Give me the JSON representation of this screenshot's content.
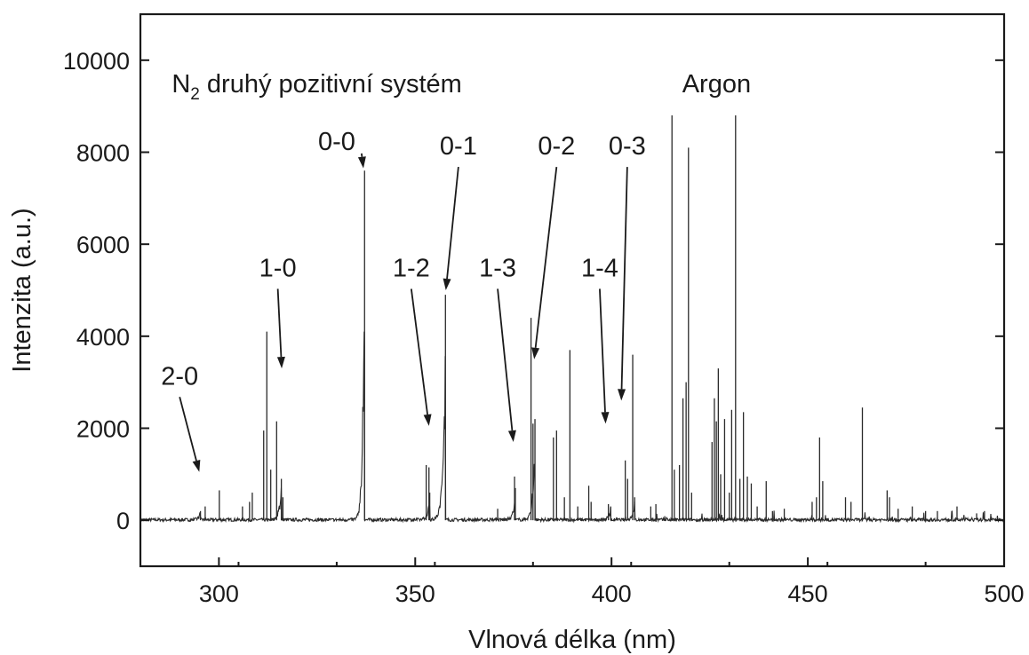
{
  "chart_data": {
    "type": "line",
    "title": "",
    "xlabel": "Vlnová délka (nm)",
    "ylabel": "Intenzita (a.u.)",
    "xlim": [
      280,
      500
    ],
    "ylim": [
      -1000,
      11000
    ],
    "xticks": [
      300,
      350,
      400,
      450,
      500
    ],
    "yticks": [
      0,
      2000,
      4000,
      6000,
      8000,
      10000
    ],
    "grid": false,
    "legend": "none",
    "annotations_text": [
      {
        "prefix": "N",
        "sub": "2",
        "suffix": " druhý pozitivní systém",
        "x": 288,
        "y": 9300
      },
      {
        "text": "Argon",
        "x": 418,
        "y": 9300
      }
    ],
    "band_labels": [
      {
        "text": "2-0",
        "label_x": 290,
        "label_y": 2950,
        "tip_x": 295,
        "tip_y": 1050
      },
      {
        "text": "1-0",
        "label_x": 315,
        "label_y": 5300,
        "tip_x": 316,
        "tip_y": 3300
      },
      {
        "text": "0-0",
        "label_x": 330,
        "label_y": 8050,
        "tip_x": 336.8,
        "tip_y": 7650
      },
      {
        "text": "1-2",
        "label_x": 349,
        "label_y": 5300,
        "tip_x": 353.5,
        "tip_y": 2050
      },
      {
        "text": "0-1",
        "label_x": 361,
        "label_y": 7950,
        "tip_x": 357.8,
        "tip_y": 5000
      },
      {
        "text": "1-3",
        "label_x": 371,
        "label_y": 5300,
        "tip_x": 375,
        "tip_y": 1700
      },
      {
        "text": "0-2",
        "label_x": 386,
        "label_y": 7950,
        "tip_x": 380.3,
        "tip_y": 3500
      },
      {
        "text": "1-4",
        "label_x": 397,
        "label_y": 5300,
        "tip_x": 398.5,
        "tip_y": 2100
      },
      {
        "text": "0-3",
        "label_x": 404,
        "label_y": 7950,
        "tip_x": 402.5,
        "tip_y": 2600
      }
    ],
    "bands": [
      {
        "head": 295.3,
        "peak": 200,
        "width": 2,
        "decay": 1.5
      },
      {
        "head": 315.9,
        "peak": 900,
        "width": 4,
        "decay": 1.6
      },
      {
        "head": 337.1,
        "peak": 7600,
        "width": 9,
        "decay": 2.2
      },
      {
        "head": 353.7,
        "peak": 600,
        "width": 5,
        "decay": 1.8
      },
      {
        "head": 357.7,
        "peak": 4900,
        "width": 6,
        "decay": 1.6
      },
      {
        "head": 375.5,
        "peak": 700,
        "width": 5,
        "decay": 1.8
      },
      {
        "head": 380.5,
        "peak": 2200,
        "width": 6,
        "decay": 1.8
      },
      {
        "head": 399.8,
        "peak": 300,
        "width": 4,
        "decay": 1.8
      },
      {
        "head": 405.9,
        "peak": 500,
        "width": 6,
        "decay": 1.8
      }
    ],
    "lines": [
      {
        "x": 296.5,
        "y": 300
      },
      {
        "x": 300.1,
        "y": 650
      },
      {
        "x": 306.0,
        "y": 300
      },
      {
        "x": 307.8,
        "y": 400
      },
      {
        "x": 308.5,
        "y": 600
      },
      {
        "x": 311.4,
        "y": 1950
      },
      {
        "x": 312.2,
        "y": 4100
      },
      {
        "x": 313.2,
        "y": 1100
      },
      {
        "x": 314.7,
        "y": 2150
      },
      {
        "x": 316.3,
        "y": 500
      },
      {
        "x": 352.8,
        "y": 1200
      },
      {
        "x": 353.5,
        "y": 1150
      },
      {
        "x": 371.0,
        "y": 250
      },
      {
        "x": 375.3,
        "y": 950
      },
      {
        "x": 379.5,
        "y": 4400
      },
      {
        "x": 380.0,
        "y": 2100
      },
      {
        "x": 385.2,
        "y": 1800
      },
      {
        "x": 386.0,
        "y": 1950
      },
      {
        "x": 388.0,
        "y": 500
      },
      {
        "x": 389.4,
        "y": 3700
      },
      {
        "x": 391.4,
        "y": 300
      },
      {
        "x": 394.2,
        "y": 750
      },
      {
        "x": 394.8,
        "y": 400
      },
      {
        "x": 399.2,
        "y": 350
      },
      {
        "x": 403.5,
        "y": 1300
      },
      {
        "x": 404.1,
        "y": 900
      },
      {
        "x": 405.4,
        "y": 3600
      },
      {
        "x": 410.0,
        "y": 300
      },
      {
        "x": 411.3,
        "y": 350
      },
      {
        "x": 415.4,
        "y": 8800
      },
      {
        "x": 416.0,
        "y": 1100
      },
      {
        "x": 417.3,
        "y": 1200
      },
      {
        "x": 418.2,
        "y": 2650
      },
      {
        "x": 419.0,
        "y": 3000
      },
      {
        "x": 419.6,
        "y": 8100
      },
      {
        "x": 420.4,
        "y": 600
      },
      {
        "x": 425.6,
        "y": 1700
      },
      {
        "x": 426.2,
        "y": 2650
      },
      {
        "x": 426.7,
        "y": 2150
      },
      {
        "x": 427.2,
        "y": 3300
      },
      {
        "x": 427.8,
        "y": 1000
      },
      {
        "x": 428.8,
        "y": 2200
      },
      {
        "x": 430.0,
        "y": 600
      },
      {
        "x": 430.6,
        "y": 2400
      },
      {
        "x": 431.6,
        "y": 8800
      },
      {
        "x": 432.7,
        "y": 900
      },
      {
        "x": 433.6,
        "y": 2350
      },
      {
        "x": 434.6,
        "y": 950
      },
      {
        "x": 435.6,
        "y": 800
      },
      {
        "x": 437.1,
        "y": 300
      },
      {
        "x": 439.4,
        "y": 850
      },
      {
        "x": 441.0,
        "y": 200
      },
      {
        "x": 444.0,
        "y": 250
      },
      {
        "x": 451.1,
        "y": 400
      },
      {
        "x": 452.2,
        "y": 500
      },
      {
        "x": 453.0,
        "y": 1800
      },
      {
        "x": 453.8,
        "y": 850
      },
      {
        "x": 459.6,
        "y": 500
      },
      {
        "x": 461.0,
        "y": 400
      },
      {
        "x": 463.9,
        "y": 2450
      },
      {
        "x": 470.2,
        "y": 650
      },
      {
        "x": 470.8,
        "y": 500
      },
      {
        "x": 473.0,
        "y": 250
      },
      {
        "x": 476.6,
        "y": 300
      },
      {
        "x": 480.0,
        "y": 200
      },
      {
        "x": 483.0,
        "y": 200
      },
      {
        "x": 488.0,
        "y": 300
      },
      {
        "x": 493.0,
        "y": 150
      },
      {
        "x": 495.0,
        "y": 200
      }
    ]
  }
}
